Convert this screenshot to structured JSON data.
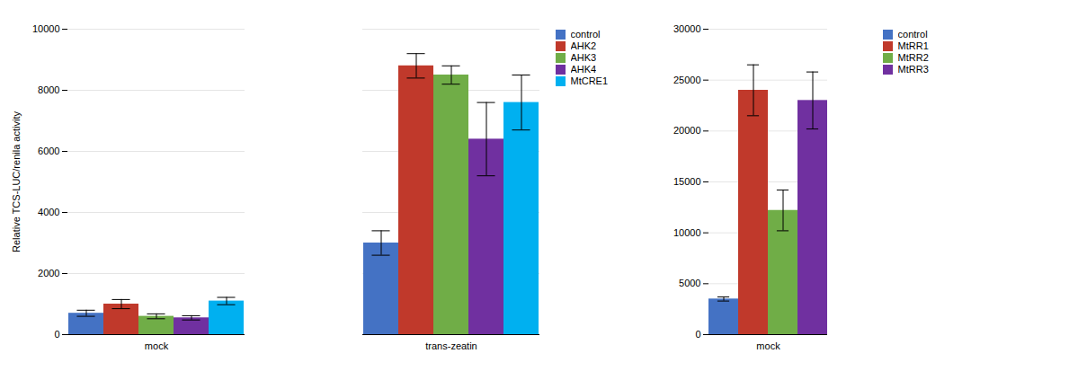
{
  "chart_data": [
    {
      "type": "bar",
      "categories": [
        "mock",
        "trans-zeatin"
      ],
      "series": [
        {
          "name": "control",
          "color": "#4472c4",
          "values": [
            700,
            3000
          ],
          "errors": [
            100,
            400
          ]
        },
        {
          "name": "AHK2",
          "color": "#c0392b",
          "values": [
            1000,
            8800
          ],
          "errors": [
            150,
            400
          ]
        },
        {
          "name": "AHK3",
          "color": "#70ad47",
          "values": [
            600,
            8500
          ],
          "errors": [
            80,
            300
          ]
        },
        {
          "name": "AHK4",
          "color": "#7030a0",
          "values": [
            550,
            6400
          ],
          "errors": [
            70,
            1200
          ]
        },
        {
          "name": "MtCRE1",
          "color": "#00b0f0",
          "values": [
            1100,
            7600
          ],
          "errors": [
            120,
            900
          ]
        }
      ],
      "ylabel": "Relative TCS-LUC/renila activity",
      "ylim": [
        0,
        10000
      ],
      "yticks": [
        0,
        2000,
        4000,
        6000,
        8000,
        10000
      ],
      "grid": true,
      "legend": "right"
    },
    {
      "type": "bar",
      "categories": [
        "mock"
      ],
      "series": [
        {
          "name": "control",
          "color": "#4472c4",
          "values": [
            3500
          ],
          "errors": [
            200
          ]
        },
        {
          "name": "MtRR1",
          "color": "#c0392b",
          "values": [
            24000
          ],
          "errors": [
            2500
          ]
        },
        {
          "name": "MtRR2",
          "color": "#70ad47",
          "values": [
            12200
          ],
          "errors": [
            2000
          ]
        },
        {
          "name": "MtRR3",
          "color": "#7030a0",
          "values": [
            23000
          ],
          "errors": [
            2800
          ]
        }
      ],
      "ylim": [
        0,
        30000
      ],
      "yticks": [
        0,
        5000,
        10000,
        15000,
        20000,
        25000,
        30000
      ],
      "grid": true,
      "legend": "right"
    }
  ]
}
